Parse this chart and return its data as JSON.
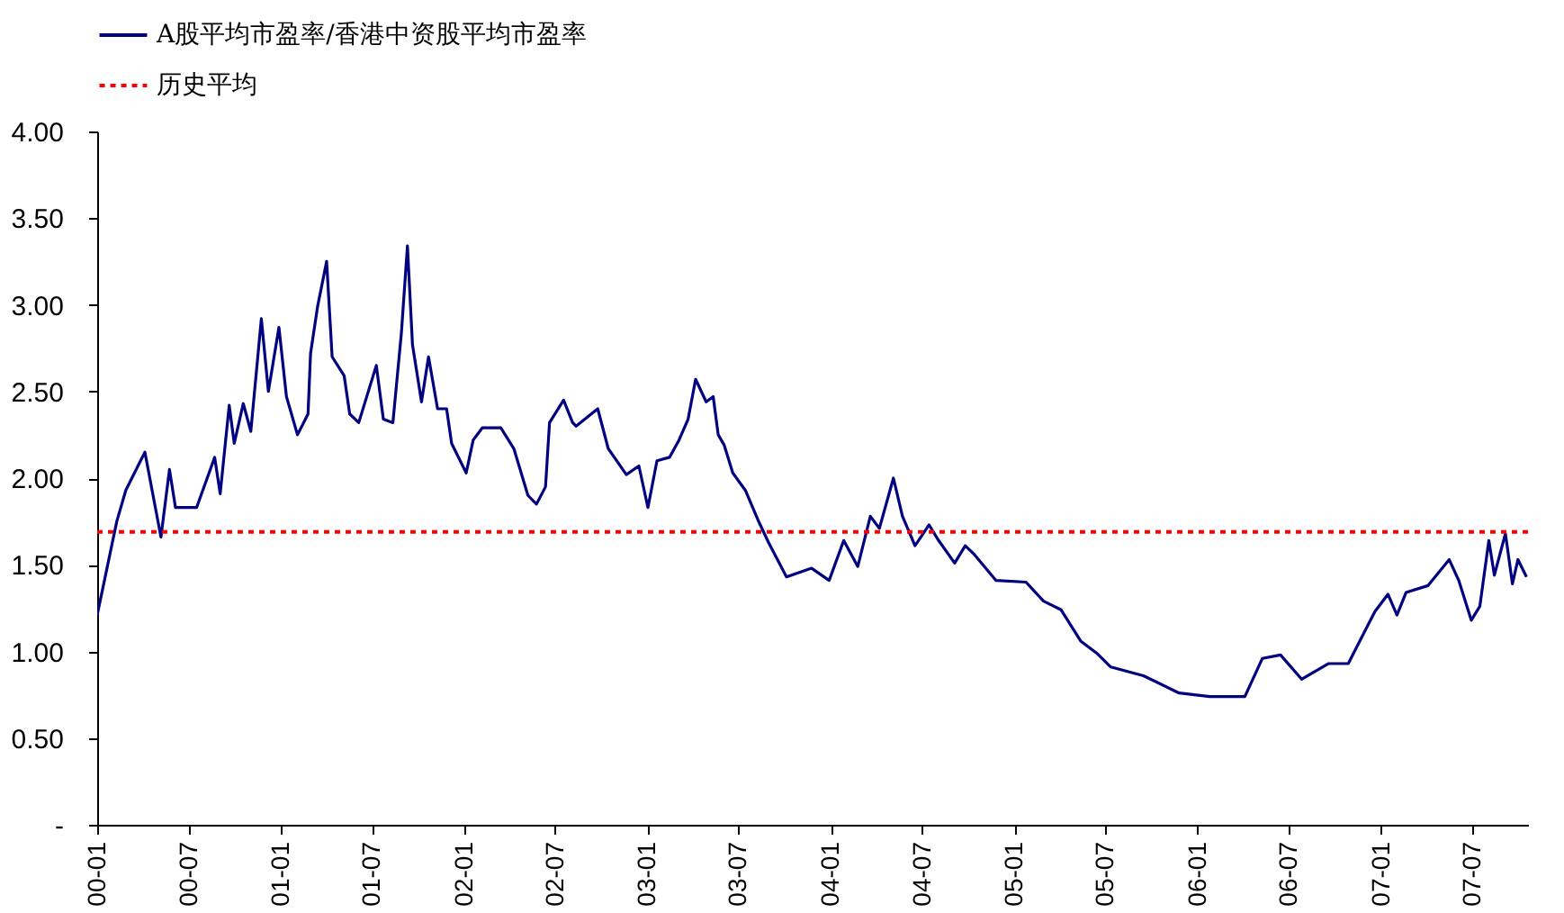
{
  "chart_data": {
    "type": "line",
    "x": [
      "2000-01-01",
      "2000-02-09",
      "2000-02-27",
      "2000-04-05",
      "2000-05-07",
      "2000-05-24",
      "2000-06-05",
      "2000-07-17",
      "2000-08-22",
      "2000-09-02",
      "2000-09-20",
      "2000-09-30",
      "2000-10-18",
      "2000-11-02",
      "2000-11-23",
      "2000-12-07",
      "2000-12-28",
      "2001-01-12",
      "2001-02-03",
      "2001-02-24",
      "2001-03-01",
      "2001-03-15",
      "2001-04-02",
      "2001-04-13",
      "2001-05-07",
      "2001-05-18",
      "2001-06-05",
      "2001-07-10",
      "2001-07-24",
      "2001-08-12",
      "2001-08-29",
      "2001-09-10",
      "2001-09-20",
      "2001-10-08",
      "2001-10-22",
      "2001-11-09",
      "2001-11-27",
      "2001-12-07",
      "2002-01-05",
      "2002-01-19",
      "2002-02-06",
      "2002-03-15",
      "2002-04-10",
      "2002-05-08",
      "2002-05-25",
      "2002-06-12",
      "2002-06-20",
      "2002-07-18",
      "2002-08-05",
      "2002-08-12",
      "2002-09-24",
      "2002-10-15",
      "2002-11-20",
      "2002-12-15",
      "2003-01-02",
      "2003-01-20",
      "2003-02-14",
      "2003-03-05",
      "2003-03-23",
      "2003-04-07",
      "2003-04-28",
      "2003-05-12",
      "2003-05-22",
      "2003-06-03",
      "2003-06-20",
      "2003-07-15",
      "2003-08-09",
      "2003-08-30",
      "2003-10-05",
      "2003-11-24",
      "2003-12-29",
      "2004-01-27",
      "2004-02-24",
      "2004-03-20",
      "2004-04-07",
      "2004-05-05",
      "2004-05-23",
      "2004-06-17",
      "2004-07-15",
      "2004-08-03",
      "2004-09-04",
      "2004-09-25",
      "2004-10-13",
      "2004-11-25",
      "2005-01-24",
      "2005-02-28",
      "2005-04-04",
      "2005-05-13",
      "2005-06-14",
      "2005-07-12",
      "2005-09-15",
      "2005-11-25",
      "2006-01-25",
      "2006-04-05",
      "2006-05-10",
      "2006-06-15",
      "2006-07-27",
      "2006-09-19",
      "2006-10-28",
      "2006-12-20",
      "2007-01-15",
      "2007-02-02",
      "2007-02-20",
      "2007-04-05",
      "2007-05-17",
      "2007-06-05",
      "2007-06-30",
      "2007-07-17",
      "2007-08-04",
      "2007-08-15",
      "2007-09-06",
      "2007-09-20",
      "2007-10-01",
      "2007-10-18"
    ],
    "series": [
      {
        "name": "A股平均市盈率/香港中资股平均市盈率",
        "color": "#000080",
        "values": [
          1.21,
          1.75,
          1.93,
          2.15,
          1.66,
          2.05,
          1.83,
          1.83,
          2.12,
          1.91,
          2.42,
          2.2,
          2.43,
          2.27,
          2.92,
          2.5,
          2.87,
          2.47,
          2.25,
          2.37,
          2.72,
          2.99,
          3.25,
          2.7,
          2.59,
          2.37,
          2.32,
          2.65,
          2.34,
          2.32,
          2.84,
          3.34,
          2.77,
          2.44,
          2.7,
          2.4,
          2.4,
          2.2,
          2.03,
          2.22,
          2.29,
          2.29,
          2.17,
          1.9,
          1.85,
          1.95,
          2.32,
          2.45,
          2.32,
          2.3,
          2.4,
          2.17,
          2.02,
          2.07,
          1.83,
          2.1,
          2.12,
          2.22,
          2.34,
          2.57,
          2.44,
          2.47,
          2.25,
          2.19,
          2.03,
          1.93,
          1.76,
          1.63,
          1.43,
          1.48,
          1.41,
          1.64,
          1.49,
          1.78,
          1.71,
          2.0,
          1.78,
          1.61,
          1.73,
          1.64,
          1.51,
          1.61,
          1.56,
          1.41,
          1.4,
          1.29,
          1.24,
          1.06,
          0.99,
          0.91,
          0.86,
          0.76,
          0.74,
          0.74,
          0.96,
          0.98,
          0.84,
          0.93,
          0.93,
          1.23,
          1.33,
          1.21,
          1.34,
          1.38,
          1.53,
          1.41,
          1.18,
          1.26,
          1.64,
          1.44,
          1.68,
          1.39,
          1.53,
          1.43
        ]
      }
    ],
    "ref_lines": [
      {
        "axis": "y",
        "value": 1.69,
        "label": "历史平均",
        "color": "#ff0000",
        "line_style": "dotted"
      }
    ],
    "xlim": [
      "2000-01-01",
      "2007-10-21"
    ],
    "xticks": [
      {
        "value": "2000-01-01",
        "label": "00-01"
      },
      {
        "value": "2000-07-01",
        "label": "00-07"
      },
      {
        "value": "2001-01-01",
        "label": "01-01"
      },
      {
        "value": "2001-07-01",
        "label": "01-07"
      },
      {
        "value": "2002-01-01",
        "label": "02-01"
      },
      {
        "value": "2002-07-01",
        "label": "02-07"
      },
      {
        "value": "2003-01-01",
        "label": "03-01"
      },
      {
        "value": "2003-07-01",
        "label": "03-07"
      },
      {
        "value": "2004-01-01",
        "label": "04-01"
      },
      {
        "value": "2004-07-01",
        "label": "04-07"
      },
      {
        "value": "2005-01-01",
        "label": "05-01"
      },
      {
        "value": "2005-07-01",
        "label": "05-07"
      },
      {
        "value": "2006-01-01",
        "label": "06-01"
      },
      {
        "value": "2006-07-01",
        "label": "06-07"
      },
      {
        "value": "2007-01-01",
        "label": "07-01"
      },
      {
        "value": "2007-07-01",
        "label": "07-07"
      }
    ],
    "ylim": [
      0,
      4
    ],
    "yticks": [
      {
        "value": 0,
        "label": "-"
      },
      {
        "value": 0.5,
        "label": "0.50"
      },
      {
        "value": 1,
        "label": "1.00"
      },
      {
        "value": 1.5,
        "label": "1.50"
      },
      {
        "value": 2,
        "label": "2.00"
      },
      {
        "value": 2.5,
        "label": "2.50"
      },
      {
        "value": 3,
        "label": "3.00"
      },
      {
        "value": 3.5,
        "label": "3.50"
      },
      {
        "value": 4,
        "label": "4.00"
      }
    ],
    "grid": false,
    "legend": "top",
    "marker": "none",
    "line_style": "solid"
  }
}
